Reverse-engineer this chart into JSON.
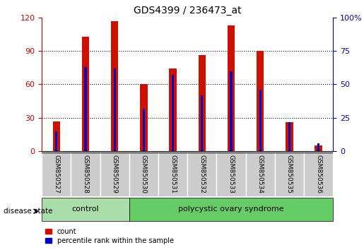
{
  "title": "GDS4399 / 236473_at",
  "samples": [
    "GSM850527",
    "GSM850528",
    "GSM850529",
    "GSM850530",
    "GSM850531",
    "GSM850532",
    "GSM850533",
    "GSM850534",
    "GSM850535",
    "GSM850536"
  ],
  "count_values": [
    27,
    103,
    117,
    60,
    74,
    86,
    113,
    90,
    26,
    5
  ],
  "percentile_values": [
    15,
    63,
    62,
    32,
    57,
    42,
    60,
    46,
    22,
    6
  ],
  "ylim_left": [
    0,
    120
  ],
  "ylim_right": [
    0,
    100
  ],
  "yticks_left": [
    0,
    30,
    60,
    90,
    120
  ],
  "yticks_right": [
    0,
    25,
    50,
    75,
    100
  ],
  "left_axis_color": "#cc0000",
  "right_axis_color": "#0000cc",
  "bar_color_red": "#cc1100",
  "bar_color_blue": "#0000cc",
  "control_label": "control",
  "pcos_label": "polycystic ovary syndrome",
  "disease_state_label": "disease state",
  "legend_count": "count",
  "legend_percentile": "percentile rank within the sample",
  "tick_bg_color": "#cccccc",
  "control_bg_color": "#aaddaa",
  "pcos_bg_color": "#66cc66",
  "red_bar_width": 0.25,
  "blue_bar_width": 0.08
}
